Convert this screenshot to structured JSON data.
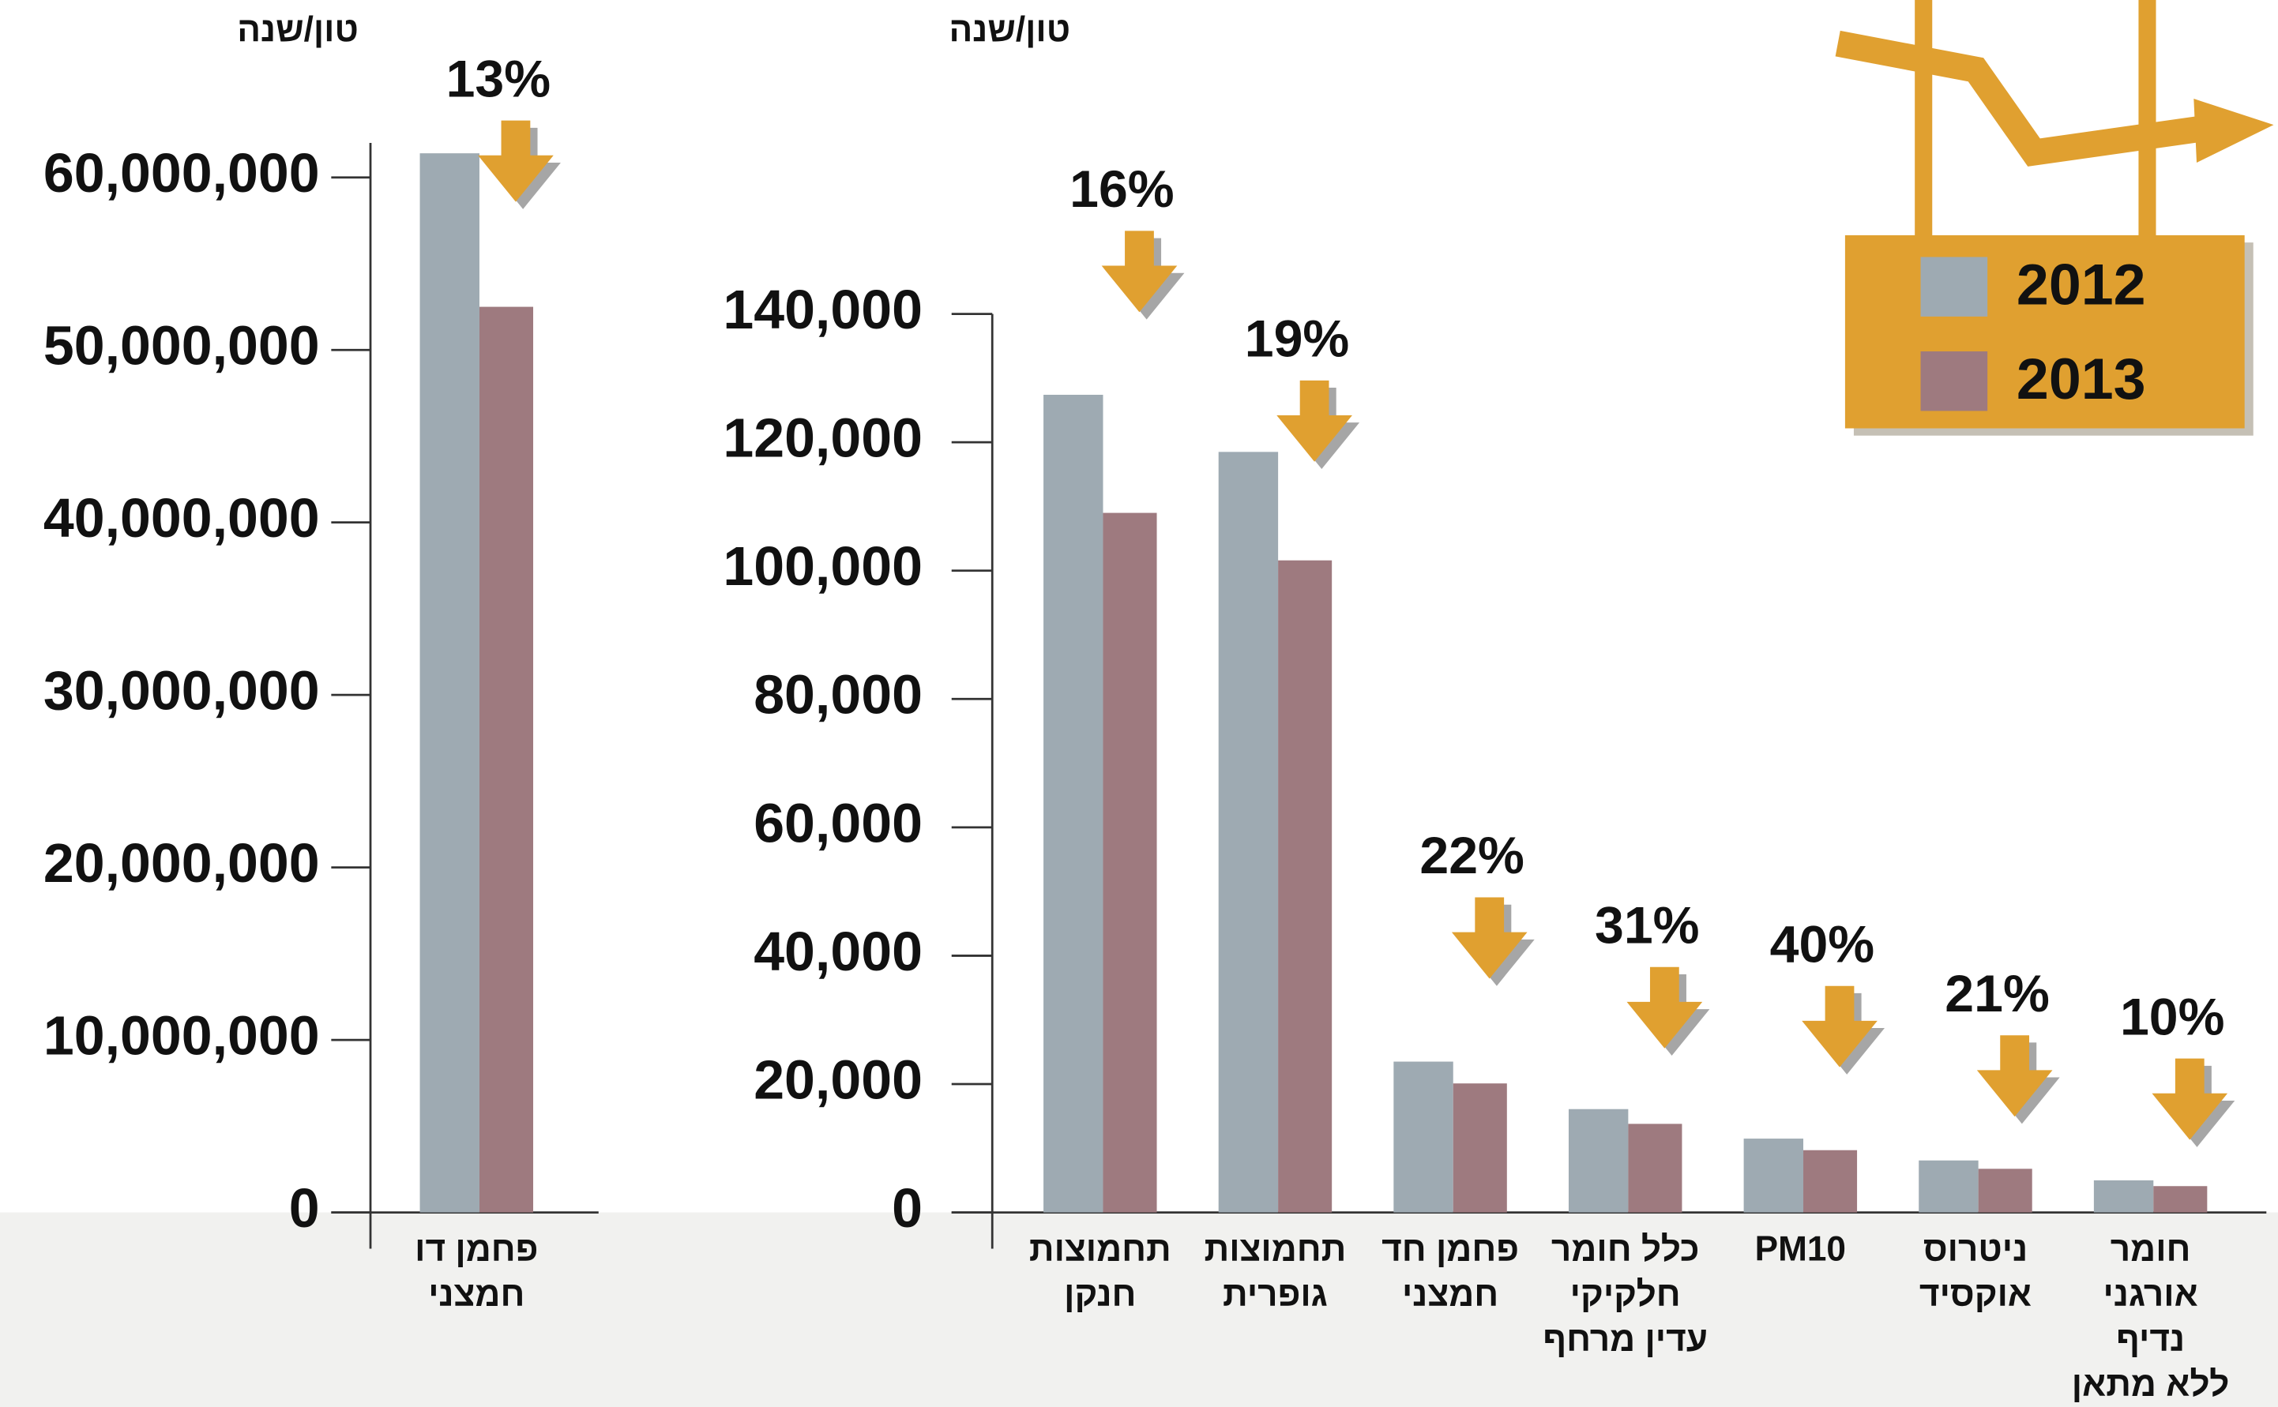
{
  "chart_data": [
    {
      "type": "bar",
      "y_label": "טון/שנה",
      "categories": [
        "פחמן דו\nחמצני"
      ],
      "annotations": [
        "13%"
      ],
      "series": [
        {
          "name": "2012",
          "color": "#9eaab2",
          "values": [
            61400000
          ]
        },
        {
          "name": "2013",
          "color": "#9e7a7f",
          "values": [
            52500000
          ]
        }
      ],
      "ylim": [
        0,
        62000000
      ],
      "yticks": [
        0,
        {
          "value": 10000000,
          "label": "10,000,000"
        },
        {
          "value": 20000000,
          "label": "20,000,000"
        },
        {
          "value": 30000000,
          "label": "30,000,000"
        },
        {
          "value": 40000000,
          "label": "40,000,000"
        },
        {
          "value": 50000000,
          "label": "50,000,000"
        },
        {
          "value": 60000000,
          "label": "60,000,000"
        }
      ]
    },
    {
      "type": "bar",
      "y_label": "טון/שנה",
      "categories": [
        "תחמוצות\nחנקן",
        "תחמוצות\nגופרית",
        "פחמן חד\nחמצני",
        "כלל חומר\nחלקיקי\nעדין מרחף",
        "PM10",
        "ניטרוס\nאוקסיד",
        "חומר\nאורגני\nנדיף\nללא מתאן"
      ],
      "annotations": [
        "16%",
        "19%",
        "22%",
        "31%",
        "40%",
        "21%",
        "10%"
      ],
      "series": [
        {
          "name": "2012",
          "color": "#9eaab2",
          "values": [
            127400,
            118500,
            23500,
            16100,
            11500,
            8100,
            5000
          ]
        },
        {
          "name": "2013",
          "color": "#9e7a7f",
          "values": [
            109000,
            101600,
            20100,
            13800,
            9700,
            6800,
            4100
          ]
        }
      ],
      "ylim": [
        0,
        140000
      ],
      "yticks": [
        0,
        {
          "value": 20000,
          "label": "20,000"
        },
        {
          "value": 40000,
          "label": "40,000"
        },
        {
          "value": 60000,
          "label": "60,000"
        },
        {
          "value": 80000,
          "label": "80,000"
        },
        {
          "value": 100000,
          "label": "100,000"
        },
        {
          "value": 120000,
          "label": "120,000"
        },
        {
          "value": 140000,
          "label": "140,000"
        }
      ],
      "legend": "top-right"
    }
  ]
}
